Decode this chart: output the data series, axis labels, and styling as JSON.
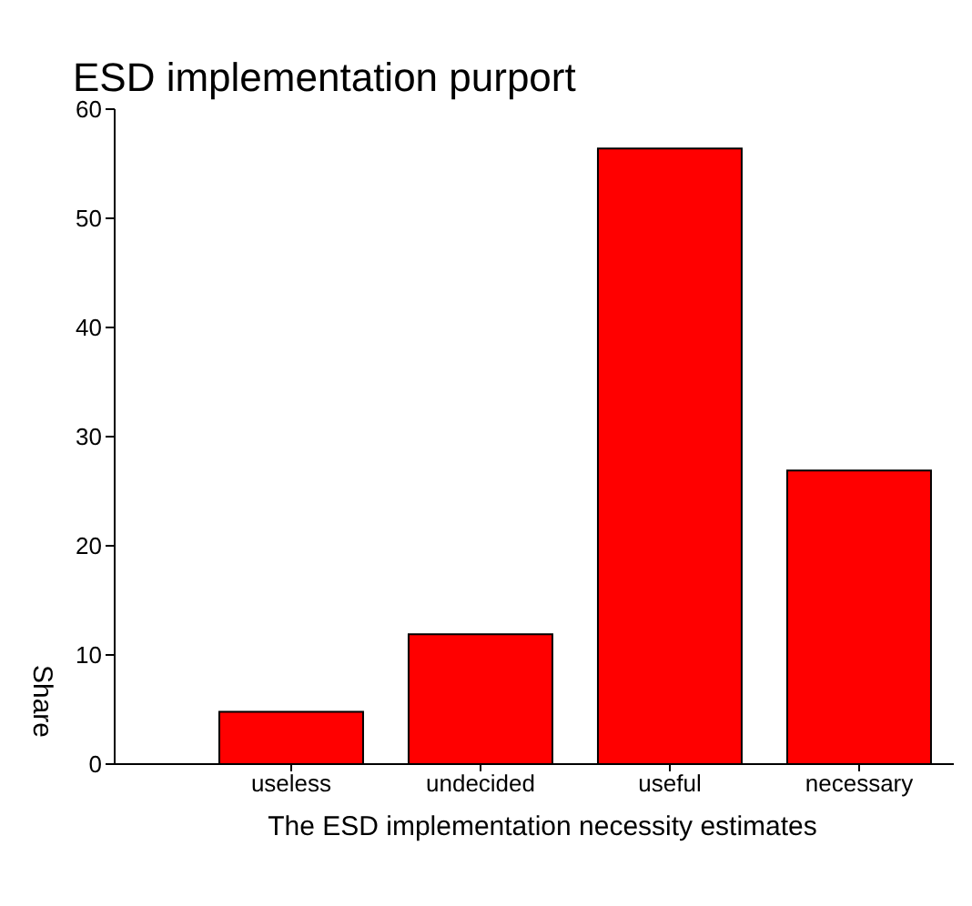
{
  "chart_data": {
    "type": "bar",
    "title": "ESD implementation purport",
    "xlabel": "The ESD implementation necessity estimates",
    "ylabel": "Share",
    "categories": [
      "useless",
      "undecided",
      "useful",
      "necessary"
    ],
    "values": [
      4.8,
      11.9,
      56.4,
      26.9
    ],
    "color": "#ff0000",
    "ylim": [
      0,
      60
    ],
    "yticks": [
      0,
      10,
      20,
      30,
      40,
      50,
      60
    ],
    "grid": false,
    "legend": false
  }
}
